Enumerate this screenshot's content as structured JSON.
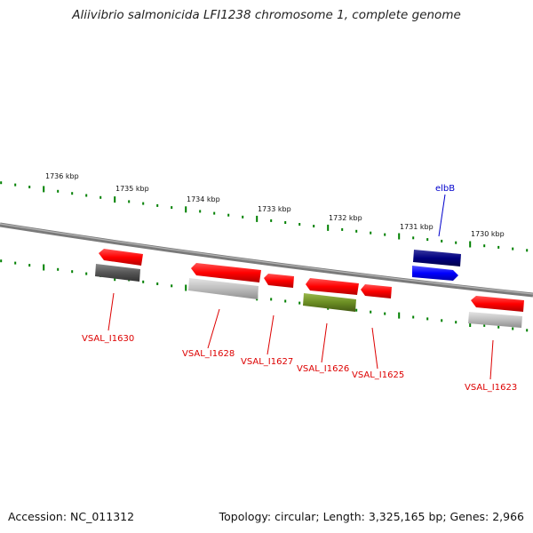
{
  "title": "Aliivibrio salmonicida LFI1238 chromosome 1, complete genome",
  "footer": {
    "accession": "Accession: NC_011312",
    "summary": "Topology: circular; Length: 3,325,165 bp; Genes: 2,966"
  },
  "scale_labels": [
    "1736 kbp",
    "1735 kbp",
    "1734 kbp",
    "1733 kbp",
    "1732 kbp",
    "1731 kbp",
    "1730 kbp"
  ],
  "genes": [
    {
      "name": "VSAL_I1630",
      "color": "#dd0000"
    },
    {
      "name": "VSAL_I1628",
      "color": "#dd0000"
    },
    {
      "name": "VSAL_I1627",
      "color": "#dd0000"
    },
    {
      "name": "VSAL_I1626",
      "color": "#dd0000"
    },
    {
      "name": "VSAL_I1625",
      "color": "#dd0000"
    },
    {
      "name": "elbB",
      "color": "#0000cc"
    },
    {
      "name": "VSAL_I1623",
      "color": "#dd0000"
    }
  ],
  "colors": {
    "forward_cds": "#ff0000",
    "blue_cds": "#0000ff",
    "dark_blue_feature": "#000080",
    "olive_feature": "#6b8e23",
    "dark_gray_feature": "#555555",
    "light_gray_feature": "#bbbbbb",
    "backbone": "#888888",
    "ticks": "#008000"
  }
}
